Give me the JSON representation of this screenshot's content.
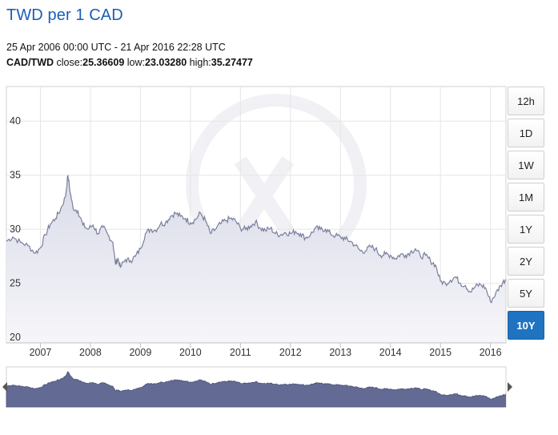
{
  "header": {
    "title": "TWD per 1 CAD",
    "date_range": "25 Apr 2006 00:00 UTC - 21 Apr 2016 22:28 UTC",
    "pair": "CAD/TWD",
    "close_label": "close:",
    "close": "25.36609",
    "low_label": "low:",
    "low": "23.03280",
    "high_label": "high:",
    "high": "35.27477"
  },
  "range_buttons": [
    {
      "label": "12h",
      "active": false
    },
    {
      "label": "1D",
      "active": false
    },
    {
      "label": "1W",
      "active": false
    },
    {
      "label": "1M",
      "active": false
    },
    {
      "label": "1Y",
      "active": false
    },
    {
      "label": "2Y",
      "active": false
    },
    {
      "label": "5Y",
      "active": false
    },
    {
      "label": "10Y",
      "active": true
    }
  ],
  "colors": {
    "line": "#7a7f9c",
    "area_top": "#d9dbe8",
    "area_bottom": "#f6f6fa",
    "navigator_fill": "#636b94",
    "active_button": "#1f73c1",
    "title": "#1a5fb4"
  },
  "chart_data": {
    "type": "area",
    "series": [
      {
        "name": "CAD/TWD",
        "points": [
          [
            2006.32,
            28.9
          ],
          [
            2006.45,
            29.3
          ],
          [
            2006.6,
            28.8
          ],
          [
            2006.75,
            28.5
          ],
          [
            2006.9,
            27.8
          ],
          [
            2007.0,
            28.3
          ],
          [
            2007.1,
            29.5
          ],
          [
            2007.2,
            30.5
          ],
          [
            2007.3,
            31.0
          ],
          [
            2007.4,
            31.8
          ],
          [
            2007.5,
            33.0
          ],
          [
            2007.55,
            35.0
          ],
          [
            2007.6,
            33.3
          ],
          [
            2007.65,
            32.0
          ],
          [
            2007.75,
            31.7
          ],
          [
            2007.85,
            30.4
          ],
          [
            2007.95,
            30.0
          ],
          [
            2008.05,
            30.4
          ],
          [
            2008.15,
            29.6
          ],
          [
            2008.25,
            30.2
          ],
          [
            2008.35,
            29.5
          ],
          [
            2008.45,
            28.8
          ],
          [
            2008.5,
            26.8
          ],
          [
            2008.55,
            27.3
          ],
          [
            2008.6,
            26.5
          ],
          [
            2008.7,
            27.2
          ],
          [
            2008.8,
            27.1
          ],
          [
            2008.9,
            27.5
          ],
          [
            2009.0,
            28.2
          ],
          [
            2009.1,
            29.6
          ],
          [
            2009.2,
            30.0
          ],
          [
            2009.3,
            29.9
          ],
          [
            2009.4,
            30.5
          ],
          [
            2009.5,
            30.6
          ],
          [
            2009.6,
            31.2
          ],
          [
            2009.7,
            31.5
          ],
          [
            2009.8,
            31.2
          ],
          [
            2009.9,
            31.0
          ],
          [
            2010.0,
            30.6
          ],
          [
            2010.1,
            30.9
          ],
          [
            2010.2,
            31.5
          ],
          [
            2010.3,
            30.8
          ],
          [
            2010.4,
            29.6
          ],
          [
            2010.5,
            30.0
          ],
          [
            2010.6,
            30.5
          ],
          [
            2010.7,
            30.8
          ],
          [
            2010.8,
            31.0
          ],
          [
            2010.9,
            30.8
          ],
          [
            2011.0,
            30.1
          ],
          [
            2011.1,
            30.0
          ],
          [
            2011.2,
            30.3
          ],
          [
            2011.3,
            30.7
          ],
          [
            2011.4,
            30.1
          ],
          [
            2011.5,
            29.9
          ],
          [
            2011.6,
            30.1
          ],
          [
            2011.7,
            29.6
          ],
          [
            2011.8,
            29.5
          ],
          [
            2011.9,
            29.7
          ],
          [
            2012.0,
            29.6
          ],
          [
            2012.1,
            29.8
          ],
          [
            2012.2,
            29.6
          ],
          [
            2012.3,
            29.2
          ],
          [
            2012.4,
            29.5
          ],
          [
            2012.5,
            30.1
          ],
          [
            2012.6,
            30.0
          ],
          [
            2012.7,
            30.0
          ],
          [
            2012.8,
            29.6
          ],
          [
            2012.9,
            29.4
          ],
          [
            2013.0,
            29.3
          ],
          [
            2013.1,
            29.1
          ],
          [
            2013.2,
            28.9
          ],
          [
            2013.3,
            28.5
          ],
          [
            2013.4,
            28.0
          ],
          [
            2013.5,
            28.0
          ],
          [
            2013.6,
            28.4
          ],
          [
            2013.7,
            28.2
          ],
          [
            2013.8,
            27.6
          ],
          [
            2013.9,
            27.7
          ],
          [
            2014.0,
            27.6
          ],
          [
            2014.1,
            27.3
          ],
          [
            2014.2,
            27.7
          ],
          [
            2014.3,
            27.6
          ],
          [
            2014.4,
            27.9
          ],
          [
            2014.5,
            28.2
          ],
          [
            2014.6,
            27.5
          ],
          [
            2014.7,
            27.6
          ],
          [
            2014.8,
            27.1
          ],
          [
            2014.9,
            26.7
          ],
          [
            2015.0,
            25.2
          ],
          [
            2015.1,
            25.0
          ],
          [
            2015.2,
            25.3
          ],
          [
            2015.3,
            25.6
          ],
          [
            2015.4,
            25.0
          ],
          [
            2015.5,
            24.8
          ],
          [
            2015.6,
            24.2
          ],
          [
            2015.7,
            24.7
          ],
          [
            2015.8,
            24.9
          ],
          [
            2015.9,
            24.6
          ],
          [
            2016.0,
            23.3
          ],
          [
            2016.1,
            24.0
          ],
          [
            2016.2,
            24.8
          ],
          [
            2016.3,
            25.37
          ]
        ]
      }
    ],
    "xticks": [
      2007,
      2008,
      2009,
      2010,
      2011,
      2012,
      2013,
      2014,
      2015,
      2016
    ],
    "xtick_labels": [
      "2007",
      "2008",
      "2009",
      "2010",
      "2011",
      "2012",
      "2013",
      "2014",
      "2015",
      "2016"
    ],
    "yticks": [
      20,
      25,
      30,
      35,
      40
    ],
    "ytick_labels": [
      "20",
      "25",
      "30",
      "35",
      "40"
    ],
    "xlim": [
      2006.32,
      2016.31
    ],
    "ylim": [
      19.5,
      43.2
    ],
    "grid": true,
    "title": "TWD per 1 CAD",
    "xlabel": "",
    "ylabel": ""
  }
}
